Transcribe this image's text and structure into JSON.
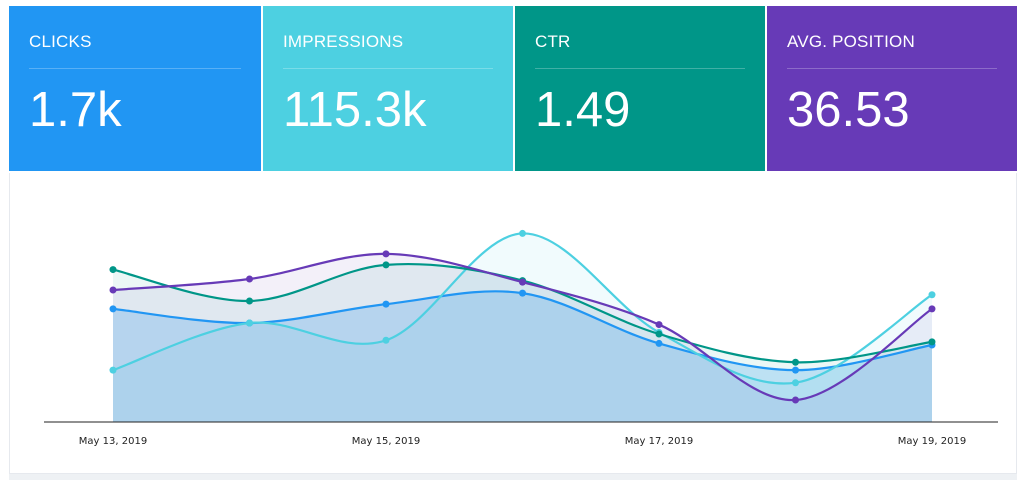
{
  "cards": [
    {
      "label": "CLICKS",
      "value": "1.7k",
      "color": "#2196F3"
    },
    {
      "label": "IMPRESSIONS",
      "value": "115.3k",
      "color": "#4DD0E1"
    },
    {
      "label": "CTR",
      "value": "1.49",
      "color": "#009688"
    },
    {
      "label": "AVG. POSITION",
      "value": "36.53",
      "color": "#673AB7"
    }
  ],
  "chart_data": {
    "type": "line",
    "x": [
      "May 13, 2019",
      "May 14, 2019",
      "May 15, 2019",
      "May 16, 2019",
      "May 17, 2019",
      "May 18, 2019",
      "May 19, 2019"
    ],
    "tick_labels": [
      "May 13, 2019",
      "May 15, 2019",
      "May 17, 2019",
      "May 19, 2019"
    ],
    "y_axis_shown": false,
    "grid": false,
    "legend": "none",
    "series": [
      {
        "color": "#2196F3",
        "values": [
          0.72,
          0.63,
          0.75,
          0.82,
          0.5,
          0.33,
          0.49
        ]
      },
      {
        "color": "#4DD0E1",
        "values": [
          0.33,
          0.63,
          0.52,
          1.2,
          0.57,
          0.25,
          0.81
        ]
      },
      {
        "color": "#009688",
        "values": [
          0.97,
          0.77,
          1.0,
          0.9,
          0.56,
          0.38,
          0.51
        ]
      },
      {
        "color": "#673AB7",
        "values": [
          0.84,
          0.91,
          1.07,
          0.89,
          0.62,
          0.14,
          0.72
        ]
      }
    ],
    "ylim": [
      0,
      1.4
    ]
  }
}
